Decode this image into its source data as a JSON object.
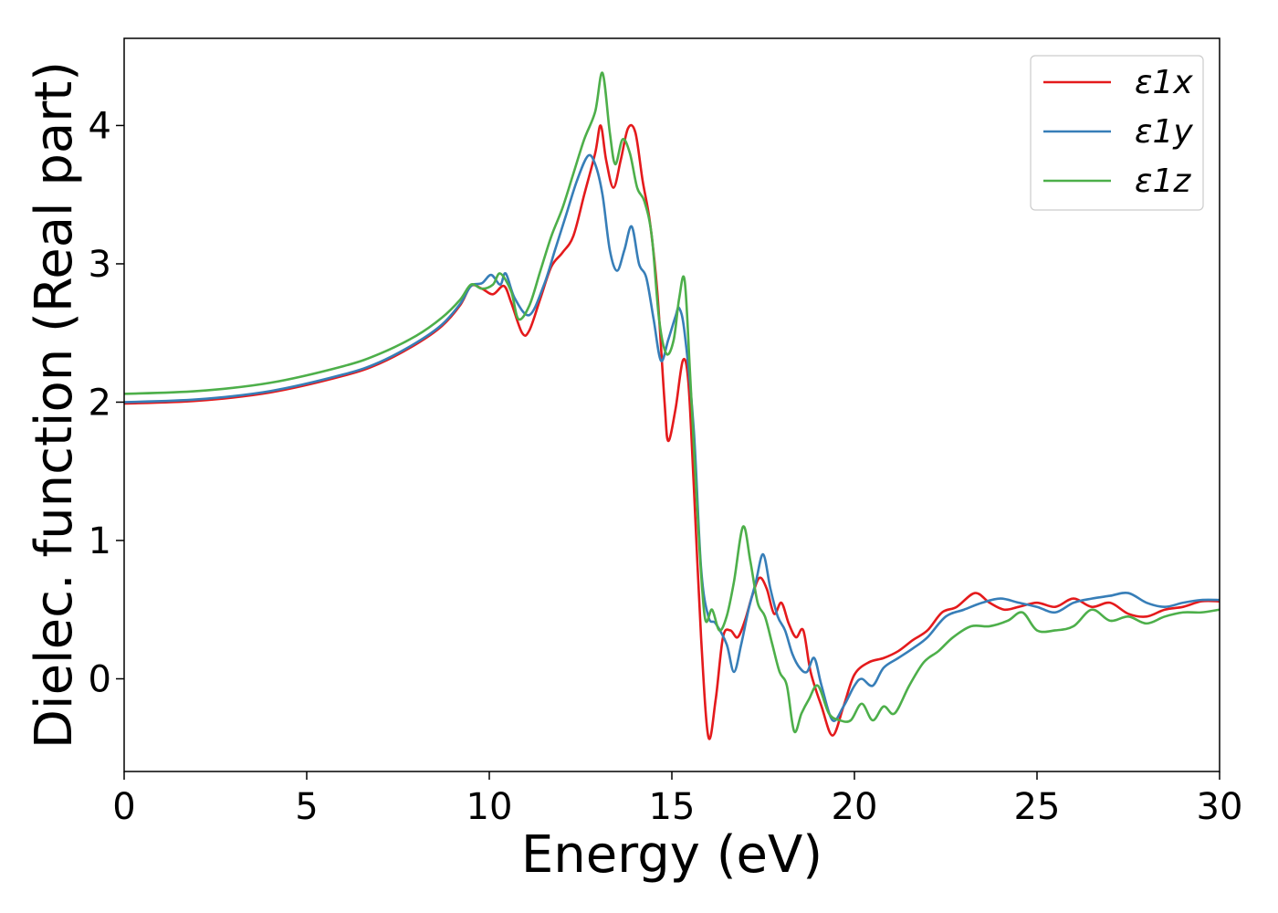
{
  "chart_data": {
    "type": "line",
    "xlabel": "Energy (eV)",
    "ylabel": "Dielec. function (Real part)",
    "xlim": [
      0,
      30
    ],
    "ylim": [
      -0.67,
      4.63
    ],
    "xticks": [
      0,
      5,
      10,
      15,
      20,
      25,
      30
    ],
    "yticks": [
      0,
      1,
      2,
      3,
      4
    ],
    "grid": false,
    "legend": {
      "position": "top-right"
    },
    "series": [
      {
        "name": "ε1x",
        "color": "#e41a1c",
        "points": [
          [
            0,
            1.99
          ],
          [
            2,
            2.01
          ],
          [
            4,
            2.07
          ],
          [
            6,
            2.19
          ],
          [
            7,
            2.28
          ],
          [
            8,
            2.42
          ],
          [
            8.7,
            2.55
          ],
          [
            9.2,
            2.7
          ],
          [
            9.5,
            2.84
          ],
          [
            9.8,
            2.82
          ],
          [
            10.1,
            2.78
          ],
          [
            10.4,
            2.84
          ],
          [
            10.6,
            2.72
          ],
          [
            10.9,
            2.5
          ],
          [
            11.1,
            2.52
          ],
          [
            11.4,
            2.75
          ],
          [
            11.7,
            2.98
          ],
          [
            12,
            3.08
          ],
          [
            12.3,
            3.2
          ],
          [
            12.6,
            3.5
          ],
          [
            12.9,
            3.8
          ],
          [
            13.05,
            4.0
          ],
          [
            13.2,
            3.75
          ],
          [
            13.4,
            3.55
          ],
          [
            13.6,
            3.75
          ],
          [
            13.8,
            3.98
          ],
          [
            14,
            3.95
          ],
          [
            14.2,
            3.6
          ],
          [
            14.4,
            3.3
          ],
          [
            14.6,
            2.8
          ],
          [
            14.8,
            2.0
          ],
          [
            14.9,
            1.72
          ],
          [
            15.1,
            1.95
          ],
          [
            15.3,
            2.3
          ],
          [
            15.45,
            2.15
          ],
          [
            15.6,
            1.4
          ],
          [
            15.8,
            0.3
          ],
          [
            16.0,
            -0.42
          ],
          [
            16.2,
            -0.15
          ],
          [
            16.4,
            0.3
          ],
          [
            16.6,
            0.35
          ],
          [
            16.8,
            0.3
          ],
          [
            17.0,
            0.42
          ],
          [
            17.2,
            0.6
          ],
          [
            17.4,
            0.73
          ],
          [
            17.6,
            0.65
          ],
          [
            17.8,
            0.47
          ],
          [
            18,
            0.55
          ],
          [
            18.2,
            0.4
          ],
          [
            18.4,
            0.3
          ],
          [
            18.6,
            0.35
          ],
          [
            18.8,
            0.05
          ],
          [
            19.1,
            -0.2
          ],
          [
            19.4,
            -0.41
          ],
          [
            19.7,
            -0.2
          ],
          [
            20,
            0.03
          ],
          [
            20.4,
            0.12
          ],
          [
            20.8,
            0.15
          ],
          [
            21.2,
            0.2
          ],
          [
            21.6,
            0.28
          ],
          [
            22,
            0.35
          ],
          [
            22.4,
            0.48
          ],
          [
            22.8,
            0.52
          ],
          [
            23.3,
            0.62
          ],
          [
            23.7,
            0.55
          ],
          [
            24.1,
            0.5
          ],
          [
            24.5,
            0.52
          ],
          [
            25,
            0.55
          ],
          [
            25.5,
            0.52
          ],
          [
            26,
            0.58
          ],
          [
            26.5,
            0.52
          ],
          [
            27,
            0.55
          ],
          [
            27.5,
            0.47
          ],
          [
            28,
            0.45
          ],
          [
            28.5,
            0.5
          ],
          [
            29,
            0.52
          ],
          [
            29.5,
            0.56
          ],
          [
            30,
            0.56
          ]
        ]
      },
      {
        "name": "ε1y",
        "color": "#377eb8",
        "points": [
          [
            0,
            2.0
          ],
          [
            2,
            2.02
          ],
          [
            4,
            2.08
          ],
          [
            6,
            2.2
          ],
          [
            7,
            2.29
          ],
          [
            8,
            2.43
          ],
          [
            8.7,
            2.56
          ],
          [
            9.2,
            2.71
          ],
          [
            9.5,
            2.84
          ],
          [
            9.8,
            2.86
          ],
          [
            10.05,
            2.92
          ],
          [
            10.3,
            2.85
          ],
          [
            10.45,
            2.93
          ],
          [
            10.7,
            2.75
          ],
          [
            11.1,
            2.63
          ],
          [
            11.5,
            2.85
          ],
          [
            11.8,
            3.1
          ],
          [
            12.1,
            3.35
          ],
          [
            12.4,
            3.6
          ],
          [
            12.7,
            3.78
          ],
          [
            12.9,
            3.72
          ],
          [
            13.1,
            3.5
          ],
          [
            13.3,
            3.1
          ],
          [
            13.5,
            2.95
          ],
          [
            13.7,
            3.1
          ],
          [
            13.9,
            3.27
          ],
          [
            14.1,
            3.0
          ],
          [
            14.3,
            2.9
          ],
          [
            14.5,
            2.6
          ],
          [
            14.7,
            2.3
          ],
          [
            14.9,
            2.45
          ],
          [
            15.1,
            2.62
          ],
          [
            15.2,
            2.68
          ],
          [
            15.35,
            2.5
          ],
          [
            15.6,
            1.8
          ],
          [
            15.8,
            0.8
          ],
          [
            16,
            0.45
          ],
          [
            16.2,
            0.4
          ],
          [
            16.5,
            0.25
          ],
          [
            16.7,
            0.05
          ],
          [
            16.9,
            0.25
          ],
          [
            17.1,
            0.5
          ],
          [
            17.3,
            0.7
          ],
          [
            17.5,
            0.9
          ],
          [
            17.7,
            0.65
          ],
          [
            17.9,
            0.45
          ],
          [
            18.1,
            0.35
          ],
          [
            18.3,
            0.18
          ],
          [
            18.5,
            0.08
          ],
          [
            18.7,
            0.05
          ],
          [
            18.9,
            0.15
          ],
          [
            19.1,
            -0.05
          ],
          [
            19.4,
            -0.3
          ],
          [
            19.7,
            -0.2
          ],
          [
            20,
            -0.05
          ],
          [
            20.2,
            0.0
          ],
          [
            20.5,
            -0.05
          ],
          [
            20.8,
            0.08
          ],
          [
            21.2,
            0.15
          ],
          [
            21.6,
            0.22
          ],
          [
            22,
            0.3
          ],
          [
            22.5,
            0.45
          ],
          [
            23,
            0.5
          ],
          [
            23.5,
            0.55
          ],
          [
            24,
            0.58
          ],
          [
            24.5,
            0.55
          ],
          [
            25,
            0.52
          ],
          [
            25.5,
            0.48
          ],
          [
            26,
            0.55
          ],
          [
            26.5,
            0.58
          ],
          [
            27,
            0.6
          ],
          [
            27.5,
            0.62
          ],
          [
            28,
            0.55
          ],
          [
            28.5,
            0.52
          ],
          [
            29,
            0.55
          ],
          [
            29.5,
            0.57
          ],
          [
            30,
            0.57
          ]
        ]
      },
      {
        "name": "ε1z",
        "color": "#4daf4a",
        "points": [
          [
            0,
            2.06
          ],
          [
            2,
            2.08
          ],
          [
            4,
            2.14
          ],
          [
            6,
            2.26
          ],
          [
            7,
            2.35
          ],
          [
            8,
            2.48
          ],
          [
            8.7,
            2.61
          ],
          [
            9.2,
            2.74
          ],
          [
            9.5,
            2.85
          ],
          [
            9.8,
            2.82
          ],
          [
            10.1,
            2.85
          ],
          [
            10.3,
            2.93
          ],
          [
            10.6,
            2.8
          ],
          [
            10.8,
            2.6
          ],
          [
            11.1,
            2.7
          ],
          [
            11.4,
            2.95
          ],
          [
            11.7,
            3.2
          ],
          [
            12,
            3.4
          ],
          [
            12.3,
            3.65
          ],
          [
            12.6,
            3.9
          ],
          [
            12.9,
            4.1
          ],
          [
            13.1,
            4.38
          ],
          [
            13.3,
            3.95
          ],
          [
            13.45,
            3.72
          ],
          [
            13.65,
            3.9
          ],
          [
            13.85,
            3.8
          ],
          [
            14.05,
            3.55
          ],
          [
            14.25,
            3.45
          ],
          [
            14.45,
            3.2
          ],
          [
            14.65,
            2.6
          ],
          [
            14.85,
            2.35
          ],
          [
            15.05,
            2.45
          ],
          [
            15.2,
            2.75
          ],
          [
            15.35,
            2.88
          ],
          [
            15.5,
            2.2
          ],
          [
            15.7,
            1.2
          ],
          [
            15.9,
            0.45
          ],
          [
            16.1,
            0.5
          ],
          [
            16.3,
            0.35
          ],
          [
            16.5,
            0.45
          ],
          [
            16.7,
            0.7
          ],
          [
            16.95,
            1.1
          ],
          [
            17.15,
            0.85
          ],
          [
            17.35,
            0.55
          ],
          [
            17.55,
            0.45
          ],
          [
            17.75,
            0.25
          ],
          [
            17.95,
            0.05
          ],
          [
            18.15,
            -0.05
          ],
          [
            18.35,
            -0.38
          ],
          [
            18.55,
            -0.25
          ],
          [
            18.75,
            -0.15
          ],
          [
            19,
            -0.05
          ],
          [
            19.3,
            -0.25
          ],
          [
            19.6,
            -0.3
          ],
          [
            19.9,
            -0.3
          ],
          [
            20.2,
            -0.18
          ],
          [
            20.5,
            -0.3
          ],
          [
            20.8,
            -0.2
          ],
          [
            21.1,
            -0.25
          ],
          [
            21.5,
            -0.05
          ],
          [
            21.9,
            0.12
          ],
          [
            22.3,
            0.2
          ],
          [
            22.7,
            0.3
          ],
          [
            23.2,
            0.38
          ],
          [
            23.7,
            0.38
          ],
          [
            24.2,
            0.42
          ],
          [
            24.6,
            0.48
          ],
          [
            25,
            0.35
          ],
          [
            25.5,
            0.35
          ],
          [
            26,
            0.38
          ],
          [
            26.5,
            0.5
          ],
          [
            27,
            0.42
          ],
          [
            27.5,
            0.45
          ],
          [
            28,
            0.4
          ],
          [
            28.5,
            0.45
          ],
          [
            29,
            0.48
          ],
          [
            29.5,
            0.48
          ],
          [
            30,
            0.5
          ]
        ]
      }
    ]
  }
}
